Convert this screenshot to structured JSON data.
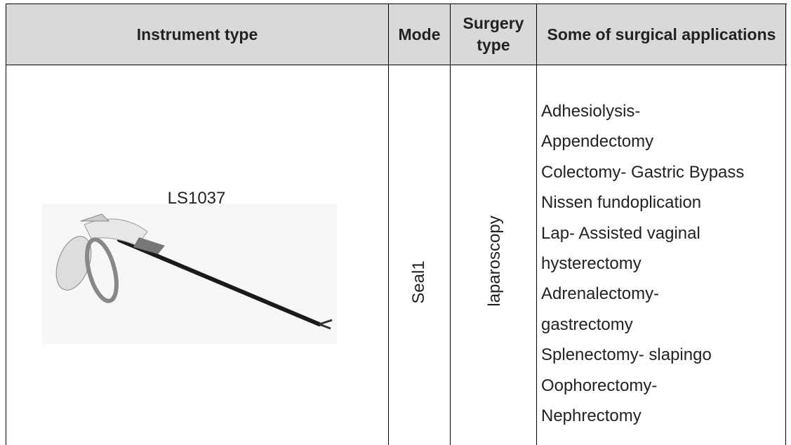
{
  "table": {
    "header": [
      "Instrument type",
      "Mode",
      "Surgery type",
      "Some of surgical applications"
    ],
    "rows": [
      {
        "instrument": "LS1037",
        "mode": "Seal1",
        "surgery": "laparoscopy",
        "applications": [
          "Adhesiolysis-",
          "Appendectomy",
          "Colectomy- Gastric Bypass",
          "Nissen fundoplication",
          "Lap- Assisted vaginal",
          "hysterectomy",
          "Adrenalectomy-",
          "gastrectomy",
          "Splenectomy- slapingo",
          "Oophorectomy-",
          "Nephrectomy"
        ]
      }
    ]
  }
}
